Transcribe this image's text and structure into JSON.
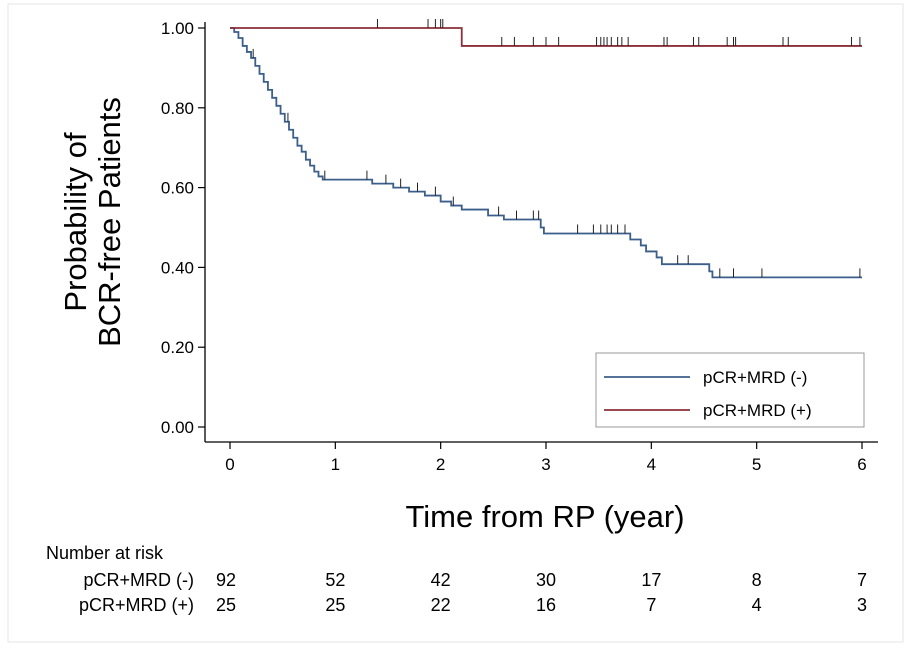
{
  "chart_data": {
    "type": "line",
    "title": "",
    "xlabel": "Time from RP (year)",
    "ylabel_lines": [
      "Probability of",
      "BCR-free Patients"
    ],
    "xlim": [
      0,
      6
    ],
    "ylim": [
      0,
      1
    ],
    "x_ticks": [
      0,
      1,
      2,
      3,
      4,
      5,
      6
    ],
    "y_ticks": [
      0.0,
      0.2,
      0.4,
      0.6,
      0.8,
      1.0
    ],
    "y_tick_labels": [
      "0.00",
      "0.20",
      "0.40",
      "0.60",
      "0.80",
      "1.00"
    ],
    "grid": false,
    "legend_position": "bottom-right",
    "series": [
      {
        "name": "pCR+MRD (-)",
        "color": "#3b5f8a",
        "steps": [
          [
            0,
            1.0
          ],
          [
            0.04,
            0.99
          ],
          [
            0.08,
            0.975
          ],
          [
            0.12,
            0.955
          ],
          [
            0.16,
            0.94
          ],
          [
            0.2,
            0.925
          ],
          [
            0.24,
            0.905
          ],
          [
            0.28,
            0.885
          ],
          [
            0.32,
            0.865
          ],
          [
            0.36,
            0.845
          ],
          [
            0.4,
            0.825
          ],
          [
            0.44,
            0.805
          ],
          [
            0.48,
            0.785
          ],
          [
            0.52,
            0.765
          ],
          [
            0.56,
            0.745
          ],
          [
            0.6,
            0.725
          ],
          [
            0.64,
            0.705
          ],
          [
            0.68,
            0.69
          ],
          [
            0.72,
            0.67
          ],
          [
            0.76,
            0.655
          ],
          [
            0.8,
            0.64
          ],
          [
            0.84,
            0.628
          ],
          [
            0.88,
            0.62
          ],
          [
            1.35,
            0.61
          ],
          [
            1.55,
            0.6
          ],
          [
            1.7,
            0.59
          ],
          [
            1.85,
            0.58
          ],
          [
            2.0,
            0.565
          ],
          [
            2.1,
            0.555
          ],
          [
            2.2,
            0.545
          ],
          [
            2.45,
            0.53
          ],
          [
            2.6,
            0.52
          ],
          [
            2.95,
            0.5
          ],
          [
            2.98,
            0.485
          ],
          [
            3.8,
            0.47
          ],
          [
            3.9,
            0.455
          ],
          [
            3.95,
            0.44
          ],
          [
            4.05,
            0.425
          ],
          [
            4.1,
            0.408
          ],
          [
            4.55,
            0.39
          ],
          [
            4.58,
            0.375
          ],
          [
            6.0,
            0.375
          ]
        ],
        "censored_x": [
          0.22,
          0.55,
          0.9,
          1.3,
          1.48,
          1.62,
          1.78,
          1.95,
          2.12,
          2.55,
          2.72,
          2.88,
          2.93,
          3.3,
          3.45,
          3.52,
          3.58,
          3.62,
          3.68,
          3.75,
          4.25,
          4.35,
          4.65,
          4.78,
          5.05,
          5.98
        ]
      },
      {
        "name": "pCR+MRD (+)",
        "color": "#8b2f3a",
        "steps": [
          [
            0,
            1.0
          ],
          [
            2.2,
            1.0
          ],
          [
            2.2,
            0.955
          ],
          [
            6.0,
            0.955
          ]
        ],
        "censored_x": [
          1.4,
          1.88,
          1.95,
          2.0,
          2.02,
          2.58,
          2.7,
          2.88,
          3.0,
          3.12,
          3.48,
          3.52,
          3.55,
          3.58,
          3.62,
          3.68,
          3.72,
          3.78,
          4.12,
          4.15,
          4.4,
          4.45,
          4.72,
          4.78,
          4.8,
          5.25,
          5.3,
          5.9,
          5.98
        ]
      }
    ]
  },
  "risk_table": {
    "title": "Number at risk",
    "rows": [
      {
        "label": "pCR+MRD (-)",
        "values": [
          "92",
          "52",
          "42",
          "30",
          "17",
          "8",
          "7"
        ]
      },
      {
        "label": "pCR+MRD (+)",
        "values": [
          "25",
          "25",
          "22",
          "16",
          "7",
          "4",
          "3"
        ]
      }
    ]
  }
}
